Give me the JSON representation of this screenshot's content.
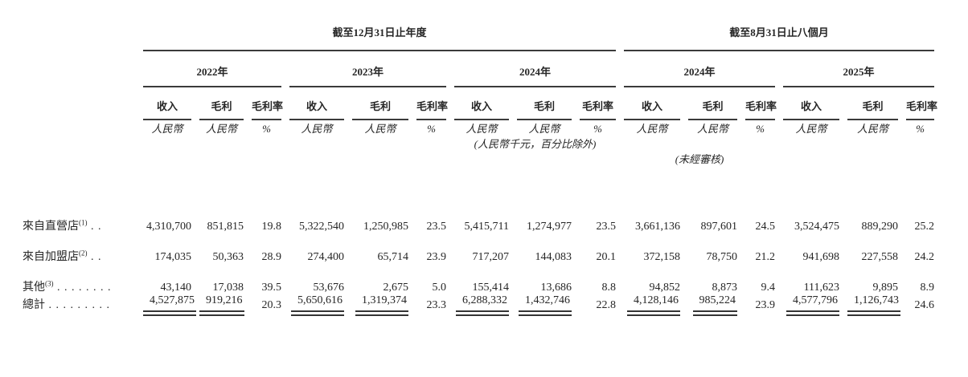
{
  "document": {
    "period_groups": [
      {
        "label": "截至12月31日止年度"
      },
      {
        "label": "截至8月31日止八個月"
      }
    ],
    "year_groups": [
      {
        "label": "2022年"
      },
      {
        "label": "2023年"
      },
      {
        "label": "2024年"
      },
      {
        "label": "2024年"
      },
      {
        "label": "2025年"
      }
    ],
    "metrics": [
      "收入",
      "毛利",
      "毛利率"
    ],
    "units": [
      "人民幣",
      "人民幣",
      "%"
    ],
    "units_note": "(人民幣千元，百分比除外)",
    "unaudited_note": "(未經審核)",
    "rows": [
      {
        "label": "來自直營店",
        "sup": "(1)",
        "dots": " . .",
        "values": [
          "4,310,700",
          "851,815",
          "19.8",
          "5,322,540",
          "1,250,985",
          "23.5",
          "5,415,711",
          "1,274,977",
          "23.5",
          "3,661,136",
          "897,601",
          "24.5",
          "3,524,475",
          "889,290",
          "25.2"
        ]
      },
      {
        "label": "來自加盟店",
        "sup": "(2)",
        "dots": " . .",
        "values": [
          "174,035",
          "50,363",
          "28.9",
          "274,400",
          "65,714",
          "23.9",
          "717,207",
          "144,083",
          "20.1",
          "372,158",
          "78,750",
          "21.2",
          "941,698",
          "227,558",
          "24.2"
        ]
      },
      {
        "label": "其他",
        "sup": "(3)",
        "dots": " . . . . . . . .",
        "values": [
          "43,140",
          "17,038",
          "39.5",
          "53,676",
          "2,675",
          "5.0",
          "155,414",
          "13,686",
          "8.8",
          "94,852",
          "8,873",
          "9.4",
          "111,623",
          "9,895",
          "8.9"
        ]
      }
    ],
    "total": {
      "label": "總計",
      "dots": " . . . . . . . . .",
      "values": [
        "4,527,875",
        "919,216",
        "20.3",
        "5,650,616",
        "1,319,374",
        "23.3",
        "6,288,332",
        "1,432,746",
        "22.8",
        "4,128,146",
        "985,224",
        "23.9",
        "4,577,796",
        "1,126,743",
        "24.6"
      ]
    }
  }
}
